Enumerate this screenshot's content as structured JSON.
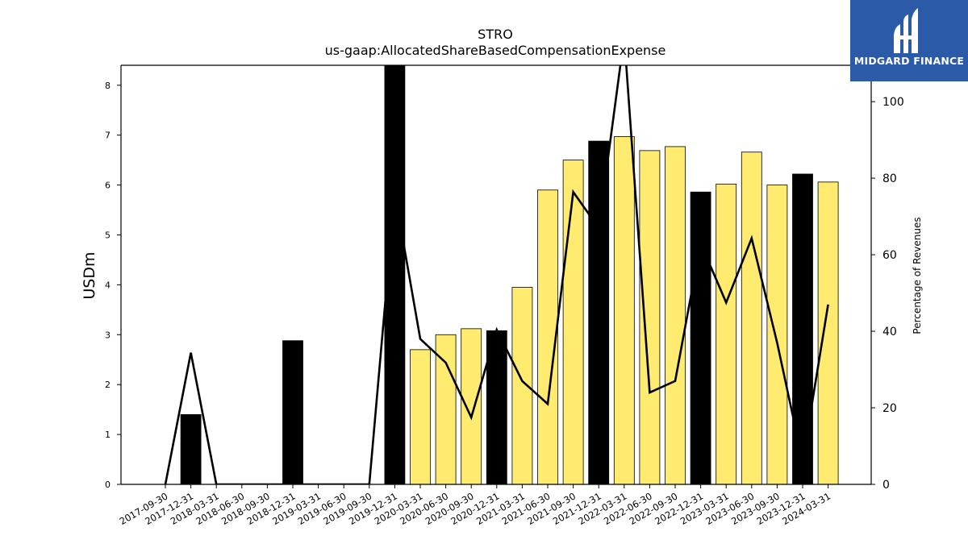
{
  "brand": {
    "logo_text": "MIDGARD FINANCE",
    "logo_color": "#2b5aa8"
  },
  "chart_data": {
    "type": "bar",
    "title": "STRO",
    "subtitle": "us-gaap:AllocatedShareBasedCompensationExpense",
    "ylabel": "USDm",
    "y2label": "Percentage of Revenues",
    "ylim": [
      0,
      8.4
    ],
    "y2lim": [
      0,
      109.5
    ],
    "yticks": [
      0,
      1,
      2,
      3,
      4,
      5,
      6,
      7,
      8
    ],
    "y2ticks": [
      0,
      20,
      40,
      60,
      80,
      100
    ],
    "categories": [
      "2017-09-30",
      "2017-12-31",
      "2018-03-31",
      "2018-06-30",
      "2018-09-30",
      "2018-12-31",
      "2019-03-31",
      "2019-06-30",
      "2019-09-30",
      "2019-12-31",
      "2020-03-31",
      "2020-06-30",
      "2020-09-30",
      "2020-12-31",
      "2021-03-31",
      "2021-06-30",
      "2021-09-30",
      "2021-12-31",
      "2022-03-31",
      "2022-06-30",
      "2022-09-30",
      "2022-12-31",
      "2023-03-31",
      "2023-06-30",
      "2023-09-30",
      "2023-12-31",
      "2024-03-31"
    ],
    "series": [
      {
        "kind": "bar",
        "values": [
          null,
          1.4,
          null,
          null,
          null,
          2.88,
          null,
          null,
          null,
          8.4,
          2.7,
          3.0,
          3.12,
          3.08,
          3.95,
          5.9,
          6.5,
          6.88,
          6.97,
          6.69,
          6.77,
          5.86,
          6.02,
          6.66,
          6.0,
          6.22,
          6.06
        ],
        "colors": [
          "#000000",
          "#000000",
          "#000000",
          "#000000",
          "#000000",
          "#000000",
          "#000000",
          "#000000",
          "#000000",
          "#000000",
          "#ffeb70",
          "#ffeb70",
          "#ffeb70",
          "#000000",
          "#ffeb70",
          "#ffeb70",
          "#ffeb70",
          "#000000",
          "#ffeb70",
          "#ffeb70",
          "#ffeb70",
          "#000000",
          "#ffeb70",
          "#ffeb70",
          "#ffeb70",
          "#000000",
          "#ffeb70"
        ]
      },
      {
        "kind": "line",
        "axis": "right",
        "color": "#000000",
        "values": [
          0,
          34.4,
          0,
          0,
          0,
          0,
          0,
          0,
          0,
          76,
          38,
          31.8,
          17.5,
          40.4,
          27,
          21,
          76.4,
          67,
          117,
          24,
          27,
          63,
          47.5,
          64.3,
          37,
          6,
          47
        ]
      }
    ]
  }
}
